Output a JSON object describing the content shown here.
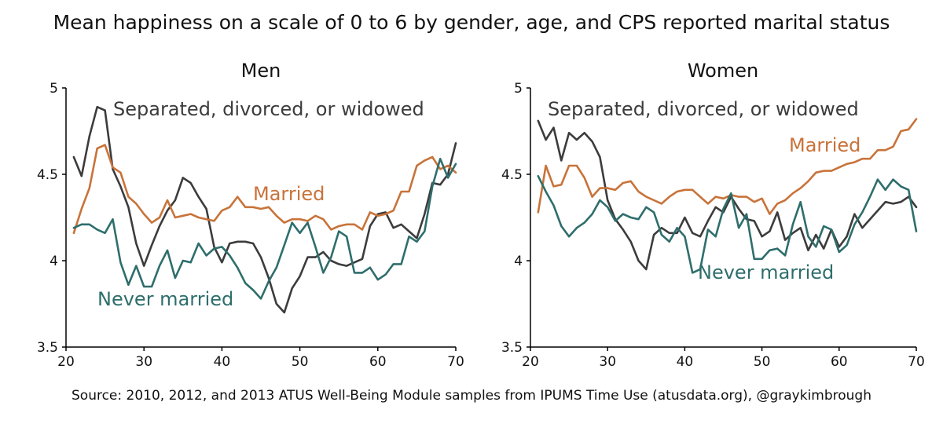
{
  "title": "Mean happiness on a scale of 0 to 6 by gender, age, and CPS reported marital status",
  "source": "Source: 2010, 2012, and 2013 ATUS Well-Being Module samples from IPUMS Time Use (atusdata.org), @graykimbrough",
  "colors": {
    "married": "#c8733a",
    "never": "#2e6e6c",
    "sdw": "#3c3c3c",
    "axis": "#000000"
  },
  "chart_data": [
    {
      "type": "line",
      "title": "Men",
      "xlim": [
        20,
        70
      ],
      "ylim": [
        3.5,
        5
      ],
      "xticks": [
        20,
        30,
        40,
        50,
        60,
        70
      ],
      "yticks": [
        3.5,
        4,
        4.5,
        5
      ],
      "x": [
        21,
        22,
        23,
        24,
        25,
        26,
        27,
        28,
        29,
        30,
        31,
        32,
        33,
        34,
        35,
        36,
        37,
        38,
        39,
        40,
        41,
        42,
        43,
        44,
        45,
        46,
        47,
        48,
        49,
        50,
        51,
        52,
        53,
        54,
        55,
        56,
        57,
        58,
        59,
        60,
        61,
        62,
        63,
        64,
        65,
        66,
        67,
        68,
        69,
        70
      ],
      "series": [
        {
          "name": "Separated, divorced, or widowed",
          "color_key": "sdw",
          "values": [
            4.6,
            4.49,
            4.72,
            4.89,
            4.87,
            4.53,
            4.43,
            4.31,
            4.1,
            3.97,
            4.09,
            4.2,
            4.29,
            4.35,
            4.48,
            4.45,
            4.37,
            4.3,
            4.08,
            3.99,
            4.1,
            4.11,
            4.11,
            4.1,
            4.02,
            3.9,
            3.75,
            3.7,
            3.84,
            3.91,
            4.02,
            4.02,
            4.05,
            4.0,
            3.98,
            3.97,
            3.99,
            4.01,
            4.2,
            4.27,
            4.28,
            4.19,
            4.21,
            4.17,
            4.13,
            4.27,
            4.45,
            4.44,
            4.5,
            4.68
          ]
        },
        {
          "name": "Married",
          "color_key": "married",
          "values": [
            4.16,
            4.3,
            4.42,
            4.65,
            4.67,
            4.54,
            4.51,
            4.37,
            4.33,
            4.27,
            4.22,
            4.25,
            4.35,
            4.25,
            4.26,
            4.27,
            4.25,
            4.24,
            4.23,
            4.29,
            4.31,
            4.37,
            4.31,
            4.31,
            4.3,
            4.31,
            4.26,
            4.22,
            4.24,
            4.24,
            4.23,
            4.26,
            4.24,
            4.18,
            4.2,
            4.21,
            4.21,
            4.18,
            4.28,
            4.26,
            4.27,
            4.29,
            4.4,
            4.4,
            4.55,
            4.58,
            4.6,
            4.53,
            4.55,
            4.51
          ]
        },
        {
          "name": "Never married",
          "color_key": "never",
          "values": [
            4.19,
            4.21,
            4.21,
            4.18,
            4.16,
            4.24,
            3.99,
            3.86,
            3.97,
            3.85,
            3.85,
            3.97,
            4.06,
            3.9,
            4.0,
            3.99,
            4.1,
            4.03,
            4.07,
            4.08,
            4.03,
            3.96,
            3.87,
            3.83,
            3.78,
            3.88,
            3.96,
            4.09,
            4.22,
            4.16,
            4.22,
            4.08,
            3.93,
            4.02,
            4.17,
            4.14,
            3.93,
            3.93,
            3.96,
            3.89,
            3.92,
            3.98,
            3.98,
            4.14,
            4.11,
            4.17,
            4.43,
            4.59,
            4.48,
            4.56
          ]
        }
      ],
      "labels": {
        "sdw": "Separated, divorced, or widowed",
        "married": "Married",
        "never": "Never married"
      }
    },
    {
      "type": "line",
      "title": "Women",
      "xlim": [
        20,
        70
      ],
      "ylim": [
        3.5,
        5
      ],
      "xticks": [
        20,
        30,
        40,
        50,
        60,
        70
      ],
      "yticks": [
        3.5,
        4,
        4.5,
        5
      ],
      "x": [
        21,
        22,
        23,
        24,
        25,
        26,
        27,
        28,
        29,
        30,
        31,
        32,
        33,
        34,
        35,
        36,
        37,
        38,
        39,
        40,
        41,
        42,
        43,
        44,
        45,
        46,
        47,
        48,
        49,
        50,
        51,
        52,
        53,
        54,
        55,
        56,
        57,
        58,
        59,
        60,
        61,
        62,
        63,
        64,
        65,
        66,
        67,
        68,
        69,
        70
      ],
      "series": [
        {
          "name": "Separated, divorced, or widowed",
          "color_key": "sdw",
          "values": [
            4.81,
            4.7,
            4.77,
            4.58,
            4.74,
            4.7,
            4.74,
            4.69,
            4.6,
            4.35,
            4.24,
            4.18,
            4.11,
            4.0,
            3.95,
            4.15,
            4.19,
            4.16,
            4.16,
            4.25,
            4.16,
            4.14,
            4.23,
            4.31,
            4.28,
            4.37,
            4.3,
            4.24,
            4.23,
            4.14,
            4.17,
            4.28,
            4.12,
            4.16,
            4.19,
            4.06,
            4.15,
            4.07,
            4.18,
            4.08,
            4.14,
            4.27,
            4.19,
            4.24,
            4.29,
            4.34,
            4.33,
            4.34,
            4.37,
            4.31
          ]
        },
        {
          "name": "Married",
          "color_key": "married",
          "values": [
            4.28,
            4.55,
            4.43,
            4.44,
            4.55,
            4.55,
            4.48,
            4.37,
            4.42,
            4.42,
            4.41,
            4.45,
            4.46,
            4.4,
            4.37,
            4.35,
            4.33,
            4.37,
            4.4,
            4.41,
            4.41,
            4.37,
            4.33,
            4.37,
            4.36,
            4.38,
            4.37,
            4.37,
            4.34,
            4.36,
            4.27,
            4.33,
            4.35,
            4.39,
            4.42,
            4.46,
            4.51,
            4.52,
            4.52,
            4.54,
            4.56,
            4.57,
            4.59,
            4.59,
            4.64,
            4.64,
            4.66,
            4.75,
            4.76,
            4.82
          ]
        },
        {
          "name": "Never married",
          "color_key": "never",
          "values": [
            4.49,
            4.4,
            4.32,
            4.2,
            4.14,
            4.19,
            4.22,
            4.27,
            4.35,
            4.31,
            4.23,
            4.27,
            4.25,
            4.24,
            4.31,
            4.28,
            4.15,
            4.11,
            4.19,
            4.14,
            3.93,
            3.95,
            4.18,
            4.14,
            4.3,
            4.39,
            4.19,
            4.27,
            4.01,
            4.01,
            4.06,
            4.07,
            4.03,
            4.21,
            4.34,
            4.14,
            4.08,
            4.2,
            4.18,
            4.05,
            4.09,
            4.21,
            4.28,
            4.37,
            4.47,
            4.41,
            4.47,
            4.43,
            4.41,
            4.17
          ]
        }
      ],
      "labels": {
        "sdw": "Separated, divorced, or widowed",
        "married": "Married",
        "never": "Never married"
      }
    }
  ]
}
